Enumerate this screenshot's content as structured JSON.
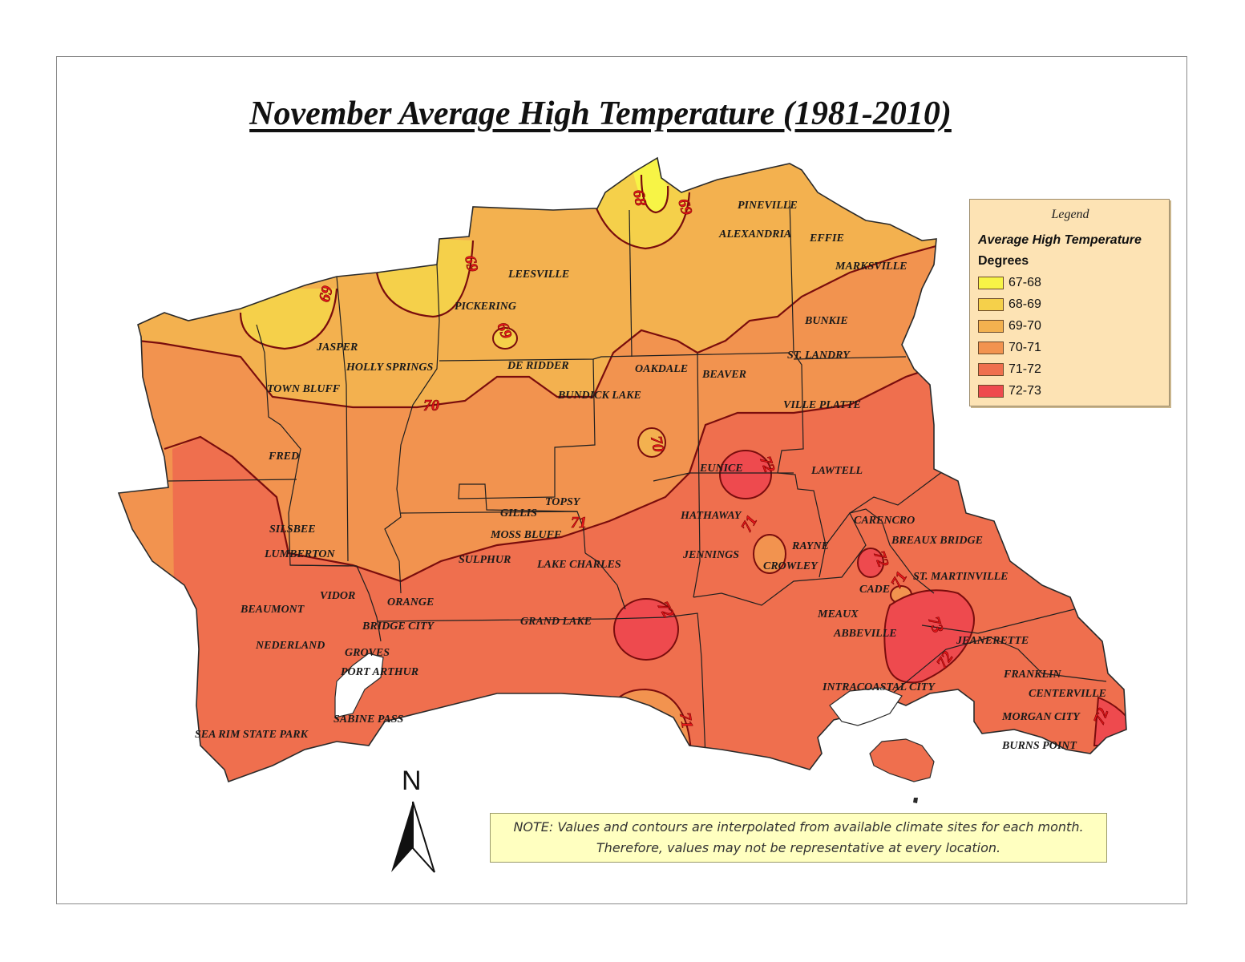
{
  "title": "November Average High Temperature (1981-2010)",
  "legend": {
    "heading": "Legend",
    "subtitle": "Average High Temperature",
    "units": "Degrees",
    "classes": [
      {
        "label": "67-68",
        "color": "#f7f446"
      },
      {
        "label": "68-69",
        "color": "#f5d04a"
      },
      {
        "label": "69-70",
        "color": "#f3b14f"
      },
      {
        "label": "70-71",
        "color": "#f2934f"
      },
      {
        "label": "71-72",
        "color": "#ef6f4e"
      },
      {
        "label": "72-73",
        "color": "#ee4a4e"
      }
    ]
  },
  "contour_labels": {
    "c68": "68",
    "c69a": "69",
    "c69b": "69",
    "c69c": "69",
    "c69d": "69",
    "c70a": "70",
    "c70b": "70",
    "c71a": "71",
    "c71b": "71",
    "c71c": "71",
    "c71d": "71",
    "c72a": "72",
    "c72b": "72",
    "c72c": "72",
    "c72d": "72",
    "c72e": "72",
    "c73": "73"
  },
  "places": {
    "pineville": "PINEVILLE",
    "alexandria": "ALEXANDRIA",
    "effie": "EFFIE",
    "marksville": "MARKSVILLE",
    "leesville": "LEESVILLE",
    "pickering": "PICKERING",
    "bunkie": "BUNKIE",
    "jasper": "JASPER",
    "st_landry": "ST. LANDRY",
    "holly_springs": "HOLLY SPRINGS",
    "de_ridder": "DE RIDDER",
    "oakdale": "OAKDALE",
    "beaver": "BEAVER",
    "town_bluff": "TOWN BLUFF",
    "bundick_lake": "BUNDICK LAKE",
    "ville_platte": "VILLE PLATTE",
    "fred": "FRED",
    "eunice": "EUNICE",
    "lawtell": "LAWTELL",
    "topsy": "TOPSY",
    "gillis": "GILLIS",
    "hathaway": "HATHAWAY",
    "carencro": "CARENCRO",
    "silsbee": "SILSBEE",
    "moss_bluff": "MOSS BLUFF",
    "breaux_bridge": "BREAUX BRIDGE",
    "rayne": "RAYNE",
    "lumberton": "LUMBERTON",
    "sulphur": "SULPHUR",
    "lake_charles": "LAKE CHARLES",
    "jennings": "JENNINGS",
    "crowley": "CROWLEY",
    "st_martinville": "ST. MARTINVILLE",
    "vidor": "VIDOR",
    "orange": "ORANGE",
    "cade": "CADE",
    "beaumont": "BEAUMONT",
    "meaux": "MEAUX",
    "bridge_city": "BRIDGE CITY",
    "grand_lake": "GRAND LAKE",
    "abbeville": "ABBEVILLE",
    "jeanerette": "JEANERETTE",
    "nederland": "NEDERLAND",
    "groves": "GROVES",
    "port_arthur": "PORT ARTHUR",
    "franklin": "FRANKLIN",
    "intracoastal_city": "INTRACOASTAL CITY",
    "centerville": "CENTERVILLE",
    "sabine_pass": "SABINE PASS",
    "morgan_city": "MORGAN CITY",
    "sea_rim": "SEA RIM STATE PARK",
    "burns_point": "BURNS POINT"
  },
  "north_arrow": "N",
  "note": {
    "line1": "NOTE: Values and contours are interpolated from available climate sites for each month.",
    "line2": "Therefore, values may not be representative at every location."
  }
}
